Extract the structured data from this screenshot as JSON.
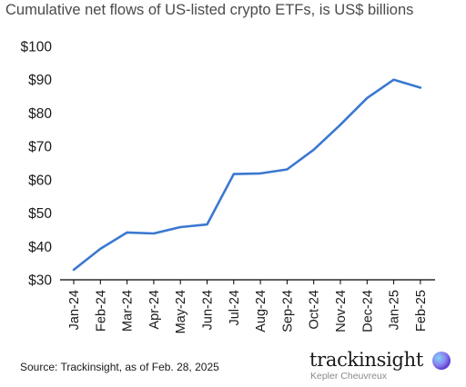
{
  "chart_data": {
    "type": "line",
    "title": "Cumulative net flows of US-listed crypto ETFs, is US$ billions",
    "xlabel": "",
    "ylabel": "",
    "categories": [
      "Jan-24",
      "Feb-24",
      "Mar-24",
      "Apr-24",
      "May-24",
      "Jun-24",
      "Jul-24",
      "Aug-24",
      "Sep-24",
      "Oct-24",
      "Nov-24",
      "Dec-24",
      "Jan-25",
      "Feb-25"
    ],
    "series": [
      {
        "values": [
          33,
          39.3,
          44.2,
          43.9,
          45.8,
          46.6,
          61.7,
          61.9,
          63.1,
          69,
          76.5,
          84.5,
          90,
          87.6
        ],
        "color": "#3a78d0"
      }
    ],
    "ylim": [
      30,
      100
    ],
    "yticks": [
      30,
      40,
      50,
      60,
      70,
      80,
      90,
      100
    ],
    "ytick_labels": [
      "$30",
      "$40",
      "$50",
      "$60",
      "$70",
      "$80",
      "$90",
      "$100"
    ],
    "grid": false,
    "legend": "none"
  },
  "footer": {
    "source": "Source: Trackinsight, as of Feb. 28, 2025",
    "logo_word": "trackinsight",
    "logo_sub": "Kepler Cheuvreux"
  }
}
